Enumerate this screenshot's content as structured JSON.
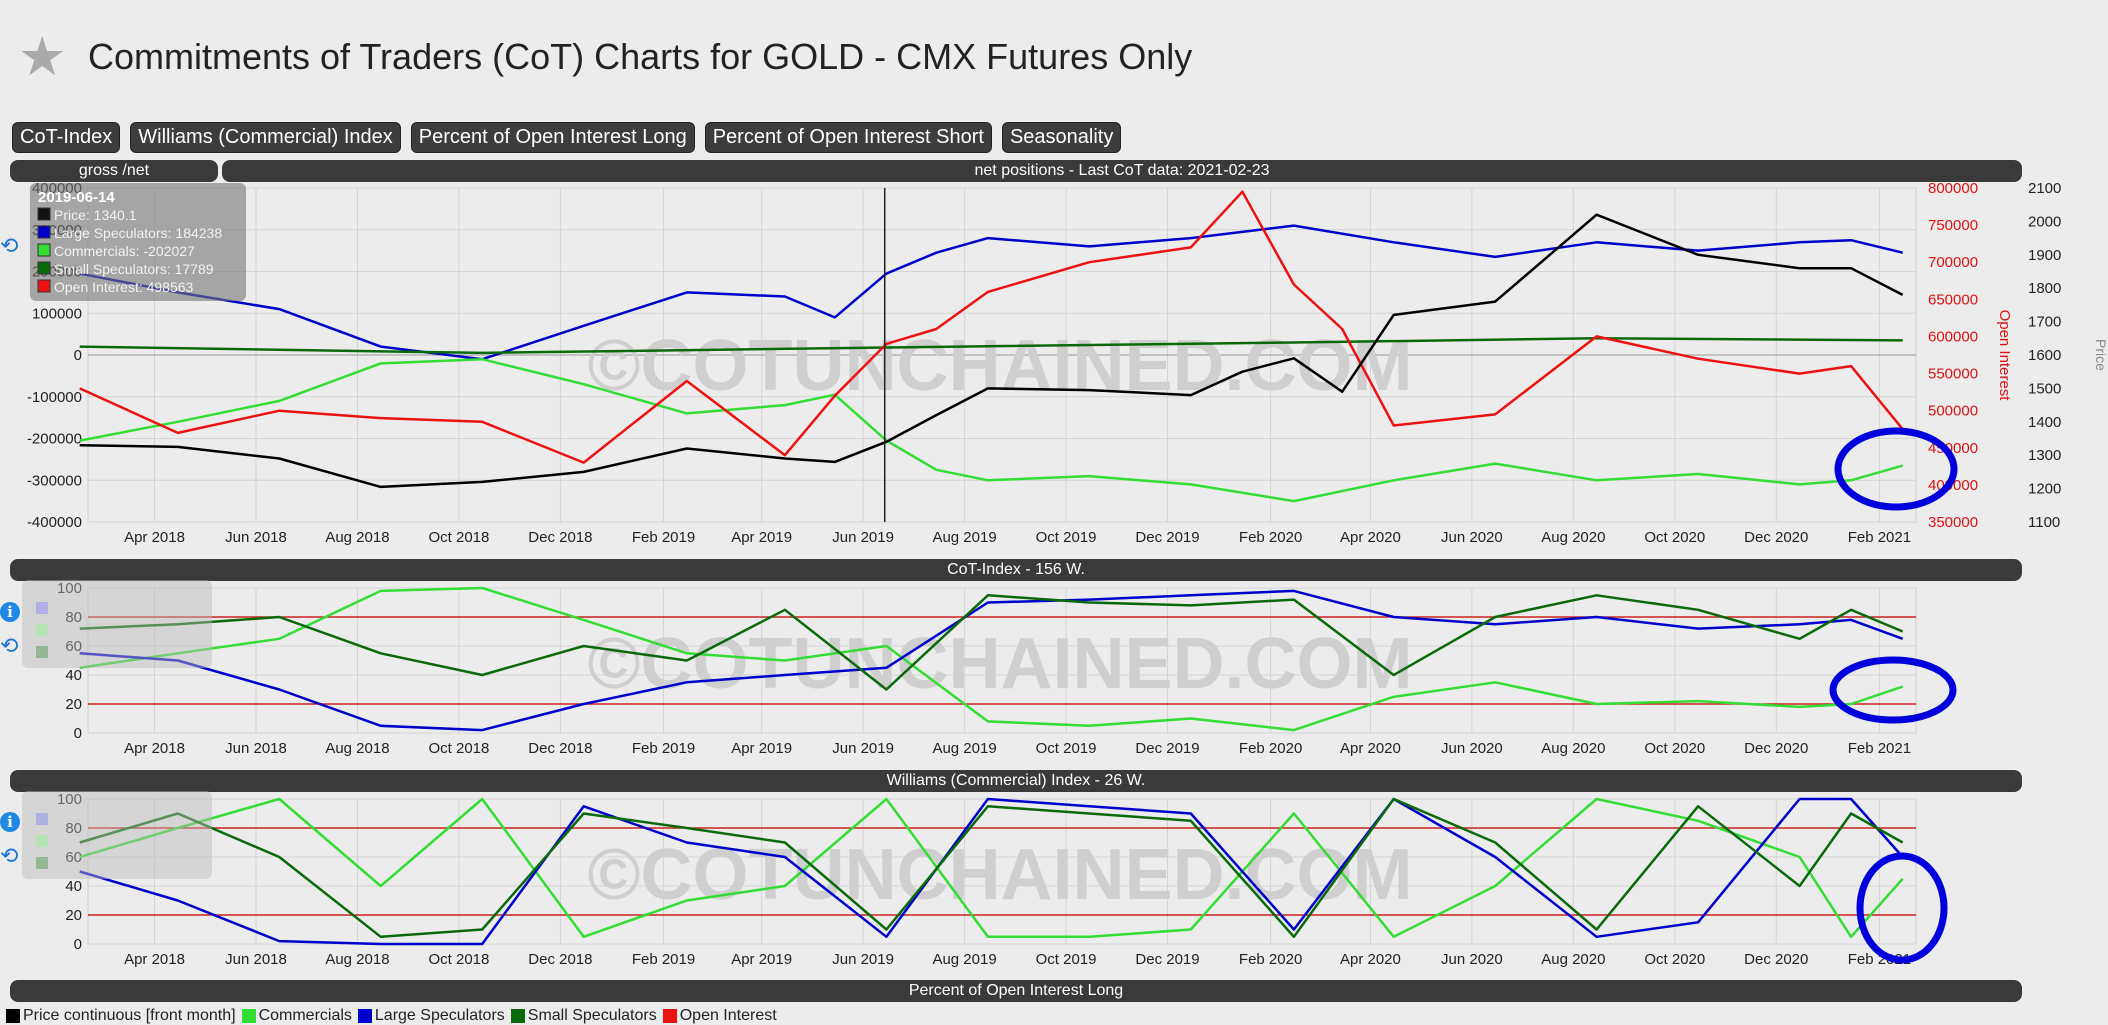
{
  "header": {
    "title": "Commitments of Traders (CoT) Charts for GOLD - CMX Futures Only"
  },
  "tabs": [
    {
      "label": "CoT-Index"
    },
    {
      "label": "Williams (Commercial) Index"
    },
    {
      "label": "Percent of Open Interest Long"
    },
    {
      "label": "Percent of Open Interest Short"
    },
    {
      "label": "Seasonality"
    }
  ],
  "panel_bars": {
    "gross_net": "gross /net",
    "net_positions": "net positions - Last CoT data: 2021-02-23",
    "cot_index": "CoT-Index - 156 W.",
    "williams": "Williams (Commercial) Index - 26 W.",
    "percent_long": "Percent of Open Interest Long"
  },
  "watermark": "©COTUNCHAINED.COM",
  "tooltip": {
    "date": "2019-06-14",
    "rows": [
      {
        "text": "Price: 1340.1",
        "color": "#111111"
      },
      {
        "text": "Large Speculators: 184238",
        "color": "#0000cc"
      },
      {
        "text": "Commercials: -202027",
        "color": "#33dd33"
      },
      {
        "text": "Small Speculators: 17789",
        "color": "#0a6a0a"
      },
      {
        "text": "Open Interest: 498563",
        "color": "#ee1111"
      }
    ]
  },
  "legend": [
    {
      "label": "Price continuous [front month]",
      "color": "#000000"
    },
    {
      "label": "Commercials",
      "color": "#33dd33"
    },
    {
      "label": "Large Speculators",
      "color": "#0000cc"
    },
    {
      "label": "Small Speculators",
      "color": "#0a6a0a"
    },
    {
      "label": "Open Interest",
      "color": "#ee1111"
    }
  ],
  "chart_data": [
    {
      "type": "line",
      "title": "net positions - Last CoT data: 2021-02-23",
      "x_ticks": [
        "Apr 2018",
        "Jun 2018",
        "Aug 2018",
        "Oct 2018",
        "Dec 2018",
        "Feb 2019",
        "Apr 2019",
        "Jun 2019",
        "Aug 2019",
        "Oct 2019",
        "Dec 2019",
        "Feb 2020",
        "Apr 2020",
        "Jun 2020",
        "Aug 2020",
        "Oct 2020",
        "Dec 2020",
        "Feb 2021"
      ],
      "x_range": [
        "2018-02-20",
        "2021-02-23"
      ],
      "y_left_ticks": [
        "400000",
        "300000",
        "200000",
        "100000",
        "0",
        "-100000",
        "-200000",
        "-300000",
        "-400000"
      ],
      "y_left_range": [
        -400000,
        400000
      ],
      "y_right1_label": "Open Interest",
      "y_right1_ticks": [
        "800000",
        "750000",
        "700000",
        "650000",
        "600000",
        "550000",
        "500000",
        "450000",
        "400000",
        "350000"
      ],
      "y_right1_range": [
        350000,
        800000
      ],
      "y_right2_label": "Price",
      "y_right2_ticks": [
        "2100",
        "2000",
        "1900",
        "1800",
        "1700",
        "1600",
        "1500",
        "1400",
        "1300",
        "1200",
        "1100"
      ],
      "y_right2_range": [
        1100,
        2100
      ],
      "cursor_date": "2019-06-14",
      "series": [
        {
          "name": "Large Speculators",
          "color": "#0000cc",
          "axis": "left",
          "x": [
            "2018-02",
            "2018-04",
            "2018-06",
            "2018-08",
            "2018-10",
            "2018-12",
            "2019-02",
            "2019-04",
            "2019-05",
            "2019-06",
            "2019-07",
            "2019-08",
            "2019-10",
            "2019-12",
            "2020-02",
            "2020-04",
            "2020-06",
            "2020-08",
            "2020-10",
            "2020-12",
            "2021-01",
            "2021-02"
          ],
          "values": [
            195000,
            150000,
            110000,
            20000,
            -10000,
            70000,
            150000,
            140000,
            90000,
            195000,
            245000,
            280000,
            260000,
            280000,
            310000,
            270000,
            235000,
            270000,
            250000,
            270000,
            275000,
            245000
          ]
        },
        {
          "name": "Commercials",
          "color": "#33dd33",
          "axis": "left",
          "x": [
            "2018-02",
            "2018-04",
            "2018-06",
            "2018-08",
            "2018-10",
            "2018-12",
            "2019-02",
            "2019-04",
            "2019-05",
            "2019-06",
            "2019-07",
            "2019-08",
            "2019-10",
            "2019-12",
            "2020-02",
            "2020-04",
            "2020-06",
            "2020-08",
            "2020-10",
            "2020-12",
            "2021-01",
            "2021-02"
          ],
          "values": [
            -205000,
            -160000,
            -110000,
            -20000,
            -10000,
            -70000,
            -140000,
            -120000,
            -95000,
            -205000,
            -275000,
            -300000,
            -290000,
            -310000,
            -350000,
            -300000,
            -260000,
            -300000,
            -285000,
            -310000,
            -300000,
            -265000
          ]
        },
        {
          "name": "Small Speculators",
          "color": "#0a6a0a",
          "axis": "left",
          "x": [
            "2018-02",
            "2018-10",
            "2019-06",
            "2020-02",
            "2020-08",
            "2021-02"
          ],
          "values": [
            20000,
            5000,
            18000,
            30000,
            40000,
            35000
          ]
        },
        {
          "name": "Open Interest",
          "color": "#ee1111",
          "axis": "right1",
          "x": [
            "2018-02",
            "2018-04",
            "2018-06",
            "2018-08",
            "2018-10",
            "2018-12",
            "2019-02",
            "2019-04",
            "2019-05",
            "2019-06",
            "2019-07",
            "2019-08",
            "2019-10",
            "2019-12",
            "2020-01",
            "2020-02",
            "2020-03",
            "2020-04",
            "2020-06",
            "2020-08",
            "2020-10",
            "2020-12",
            "2021-01",
            "2021-02"
          ],
          "values": [
            530000,
            470000,
            500000,
            490000,
            485000,
            430000,
            540000,
            440000,
            520000,
            590000,
            610000,
            660000,
            700000,
            720000,
            795000,
            670000,
            610000,
            480000,
            495000,
            600000,
            570000,
            550000,
            560000,
            475000
          ]
        },
        {
          "name": "Price continuous [front month]",
          "color": "#000000",
          "axis": "right2",
          "x": [
            "2018-02",
            "2018-04",
            "2018-06",
            "2018-08",
            "2018-10",
            "2018-12",
            "2019-02",
            "2019-04",
            "2019-05",
            "2019-06",
            "2019-07",
            "2019-08",
            "2019-10",
            "2019-12",
            "2020-01",
            "2020-02",
            "2020-03",
            "2020-04",
            "2020-06",
            "2020-08",
            "2020-10",
            "2020-12",
            "2021-01",
            "2021-02"
          ],
          "values": [
            1330,
            1325,
            1290,
            1205,
            1220,
            1250,
            1320,
            1290,
            1280,
            1340,
            1420,
            1500,
            1495,
            1480,
            1550,
            1590,
            1490,
            1720,
            1760,
            2020,
            1900,
            1860,
            1860,
            1780
          ]
        }
      ]
    },
    {
      "type": "line",
      "title": "CoT-Index - 156 W.",
      "x_ticks": [
        "Apr 2018",
        "Jun 2018",
        "Aug 2018",
        "Oct 2018",
        "Dec 2018",
        "Feb 2019",
        "Apr 2019",
        "Jun 2019",
        "Aug 2019",
        "Oct 2019",
        "Dec 2019",
        "Feb 2020",
        "Apr 2020",
        "Jun 2020",
        "Aug 2020",
        "Oct 2020",
        "Dec 2020",
        "Feb 2021"
      ],
      "y_ticks": [
        "100",
        "80",
        "60",
        "40",
        "20",
        "0"
      ],
      "y_range": [
        0,
        100
      ],
      "reference_lines": [
        80,
        20
      ],
      "series": [
        {
          "name": "Commercials",
          "color": "#33dd33",
          "x": [
            "2018-02",
            "2018-04",
            "2018-06",
            "2018-08",
            "2018-10",
            "2018-12",
            "2019-02",
            "2019-04",
            "2019-06",
            "2019-08",
            "2019-10",
            "2019-12",
            "2020-02",
            "2020-04",
            "2020-06",
            "2020-08",
            "2020-10",
            "2020-12",
            "2021-01",
            "2021-02"
          ],
          "values": [
            45,
            55,
            65,
            98,
            100,
            78,
            55,
            50,
            60,
            8,
            5,
            10,
            2,
            25,
            35,
            20,
            22,
            18,
            20,
            32
          ]
        },
        {
          "name": "Large Speculators",
          "color": "#0000cc",
          "x": [
            "2018-02",
            "2018-04",
            "2018-06",
            "2018-08",
            "2018-10",
            "2018-12",
            "2019-02",
            "2019-04",
            "2019-06",
            "2019-08",
            "2019-10",
            "2019-12",
            "2020-02",
            "2020-04",
            "2020-06",
            "2020-08",
            "2020-10",
            "2020-12",
            "2021-01",
            "2021-02"
          ],
          "values": [
            55,
            50,
            30,
            5,
            2,
            20,
            35,
            40,
            45,
            90,
            92,
            95,
            98,
            80,
            75,
            80,
            72,
            75,
            78,
            65
          ]
        },
        {
          "name": "Small Speculators",
          "color": "#0a6a0a",
          "x": [
            "2018-02",
            "2018-04",
            "2018-06",
            "2018-08",
            "2018-10",
            "2018-12",
            "2019-02",
            "2019-04",
            "2019-06",
            "2019-08",
            "2019-10",
            "2019-12",
            "2020-02",
            "2020-04",
            "2020-06",
            "2020-08",
            "2020-10",
            "2020-12",
            "2021-01",
            "2021-02"
          ],
          "values": [
            72,
            75,
            80,
            55,
            40,
            60,
            50,
            85,
            30,
            95,
            90,
            88,
            92,
            40,
            80,
            95,
            85,
            65,
            85,
            70
          ]
        }
      ]
    },
    {
      "type": "line",
      "title": "Williams (Commercial) Index - 26 W.",
      "x_ticks": [
        "Apr 2018",
        "Jun 2018",
        "Aug 2018",
        "Oct 2018",
        "Dec 2018",
        "Feb 2019",
        "Apr 2019",
        "Jun 2019",
        "Aug 2019",
        "Oct 2019",
        "Dec 2019",
        "Feb 2020",
        "Apr 2020",
        "Jun 2020",
        "Aug 2020",
        "Oct 2020",
        "Dec 2020",
        "Feb 2021"
      ],
      "y_ticks": [
        "100",
        "80",
        "60",
        "40",
        "20",
        "0"
      ],
      "y_range": [
        0,
        100
      ],
      "reference_lines": [
        80,
        20
      ],
      "series": [
        {
          "name": "Commercials",
          "color": "#33dd33",
          "x": [
            "2018-02",
            "2018-04",
            "2018-06",
            "2018-08",
            "2018-10",
            "2018-12",
            "2019-02",
            "2019-04",
            "2019-06",
            "2019-08",
            "2019-10",
            "2019-12",
            "2020-02",
            "2020-04",
            "2020-06",
            "2020-08",
            "2020-10",
            "2020-12",
            "2021-01",
            "2021-02"
          ],
          "values": [
            60,
            80,
            100,
            40,
            100,
            5,
            30,
            40,
            100,
            5,
            5,
            10,
            90,
            5,
            40,
            100,
            85,
            60,
            5,
            45
          ]
        },
        {
          "name": "Large Speculators",
          "color": "#0000cc",
          "x": [
            "2018-02",
            "2018-04",
            "2018-06",
            "2018-08",
            "2018-10",
            "2018-12",
            "2019-02",
            "2019-04",
            "2019-06",
            "2019-08",
            "2019-10",
            "2019-12",
            "2020-02",
            "2020-04",
            "2020-06",
            "2020-08",
            "2020-10",
            "2020-12",
            "2021-01",
            "2021-02"
          ],
          "values": [
            50,
            30,
            2,
            0,
            0,
            95,
            70,
            60,
            5,
            100,
            95,
            90,
            10,
            100,
            60,
            5,
            15,
            100,
            100,
            60
          ]
        },
        {
          "name": "Small Speculators",
          "color": "#0a6a0a",
          "x": [
            "2018-02",
            "2018-04",
            "2018-06",
            "2018-08",
            "2018-10",
            "2018-12",
            "2019-02",
            "2019-04",
            "2019-06",
            "2019-08",
            "2019-10",
            "2019-12",
            "2020-02",
            "2020-04",
            "2020-06",
            "2020-08",
            "2020-10",
            "2020-12",
            "2021-01",
            "2021-02"
          ],
          "values": [
            70,
            90,
            60,
            5,
            10,
            90,
            80,
            70,
            10,
            95,
            90,
            85,
            5,
            100,
            70,
            10,
            95,
            40,
            90,
            70
          ]
        }
      ]
    }
  ],
  "annotations": {
    "circle_color": "#0000dd"
  }
}
